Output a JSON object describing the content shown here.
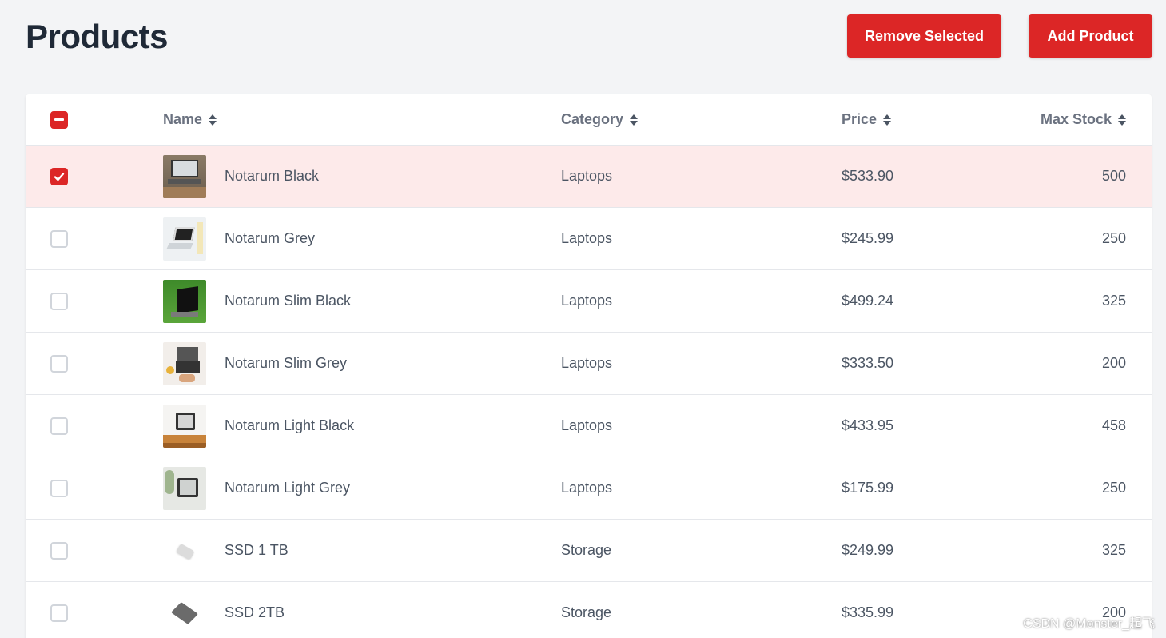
{
  "page": {
    "title": "Products",
    "remove_label": "Remove Selected",
    "add_label": "Add Product",
    "watermark": "CSDN @Monster_起飞"
  },
  "colors": {
    "accent": "#dc2626",
    "selected_row": "#fdeaea"
  },
  "table": {
    "headers": {
      "name": "Name",
      "category": "Category",
      "price": "Price",
      "stock": "Max Stock"
    },
    "rows": [
      {
        "name": "Notarum Black",
        "category": "Laptops",
        "price": "$533.90",
        "stock": "500",
        "selected": true,
        "thumb": "laptop-desk"
      },
      {
        "name": "Notarum Grey",
        "category": "Laptops",
        "price": "$245.99",
        "stock": "250",
        "selected": false,
        "thumb": "laptop-white"
      },
      {
        "name": "Notarum Slim Black",
        "category": "Laptops",
        "price": "$499.24",
        "stock": "325",
        "selected": false,
        "thumb": "laptop-grass"
      },
      {
        "name": "Notarum Slim Grey",
        "category": "Laptops",
        "price": "$333.50",
        "stock": "200",
        "selected": false,
        "thumb": "laptop-hands"
      },
      {
        "name": "Notarum Light Black",
        "category": "Laptops",
        "price": "$433.95",
        "stock": "458",
        "selected": false,
        "thumb": "laptop-wood"
      },
      {
        "name": "Notarum Light Grey",
        "category": "Laptops",
        "price": "$175.99",
        "stock": "250",
        "selected": false,
        "thumb": "laptop-plants"
      },
      {
        "name": "SSD 1 TB",
        "category": "Storage",
        "price": "$249.99",
        "stock": "325",
        "selected": false,
        "thumb": "ssd-silver"
      },
      {
        "name": "SSD 2TB",
        "category": "Storage",
        "price": "$335.99",
        "stock": "200",
        "selected": false,
        "thumb": "ssd-grey"
      }
    ]
  }
}
